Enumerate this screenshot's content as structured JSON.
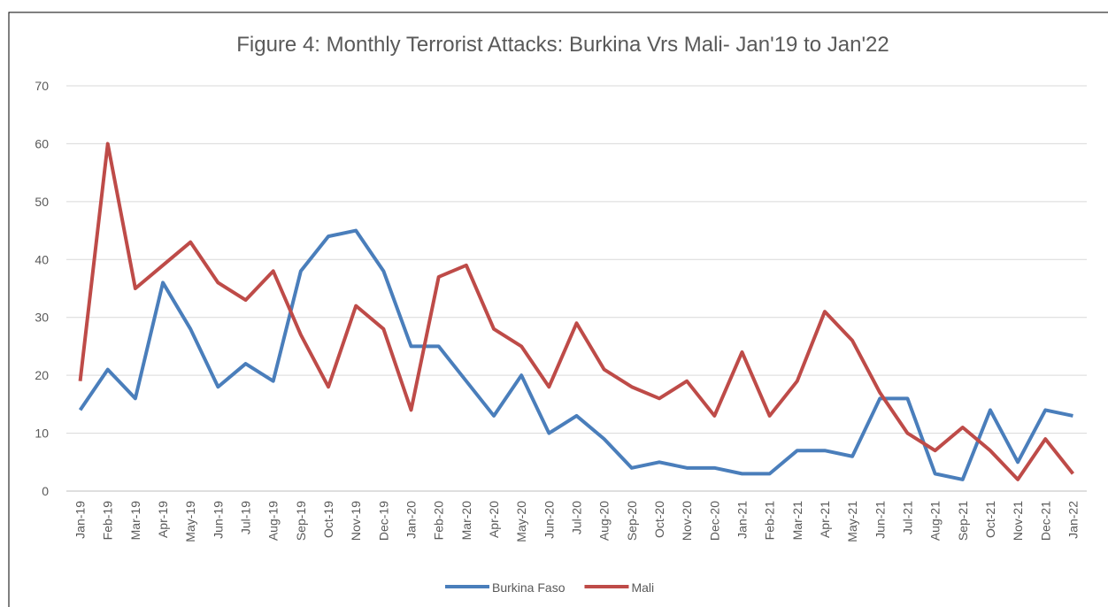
{
  "chart_data": {
    "type": "line",
    "title": "Figure 4: Monthly Terrorist Attacks: Burkina Vrs Mali- Jan'19 to Jan'22",
    "categories": [
      "Jan-19",
      "Feb-19",
      "Mar-19",
      "Apr-19",
      "May-19",
      "Jun-19",
      "Jul-19",
      "Aug-19",
      "Sep-19",
      "Oct-19",
      "Nov-19",
      "Dec-19",
      "Jan-20",
      "Feb-20",
      "Mar-20",
      "Apr-20",
      "May-20",
      "Jun-20",
      "Jul-20",
      "Aug-20",
      "Sep-20",
      "Oct-20",
      "Nov-20",
      "Dec-20",
      "Jan-21",
      "Feb-21",
      "Mar-21",
      "Apr-21",
      "May-21",
      "Jun-21",
      "Jul-21",
      "Aug-21",
      "Sep-21",
      "Oct-21",
      "Nov-21",
      "Dec-21",
      "Jan-22"
    ],
    "series": [
      {
        "name": "Burkina Faso",
        "color": "#4a7ebb",
        "values": [
          14,
          21,
          16,
          36,
          28,
          18,
          22,
          19,
          38,
          44,
          45,
          38,
          25,
          25,
          19,
          13,
          20,
          10,
          13,
          9,
          4,
          5,
          4,
          4,
          3,
          3,
          7,
          7,
          6,
          16,
          16,
          3,
          2,
          14,
          5,
          14,
          13
        ]
      },
      {
        "name": "Mali",
        "color": "#be4b48",
        "values": [
          19,
          60,
          35,
          39,
          43,
          36,
          33,
          38,
          27,
          18,
          32,
          28,
          14,
          37,
          39,
          28,
          25,
          18,
          29,
          21,
          18,
          16,
          19,
          13,
          24,
          13,
          19,
          31,
          26,
          17,
          10,
          7,
          11,
          7,
          2,
          9,
          3
        ]
      }
    ],
    "ylim": [
      0,
      70
    ],
    "yticks": [
      0,
      10,
      20,
      30,
      40,
      50,
      60,
      70
    ],
    "grid": true,
    "legend": "bottom"
  }
}
